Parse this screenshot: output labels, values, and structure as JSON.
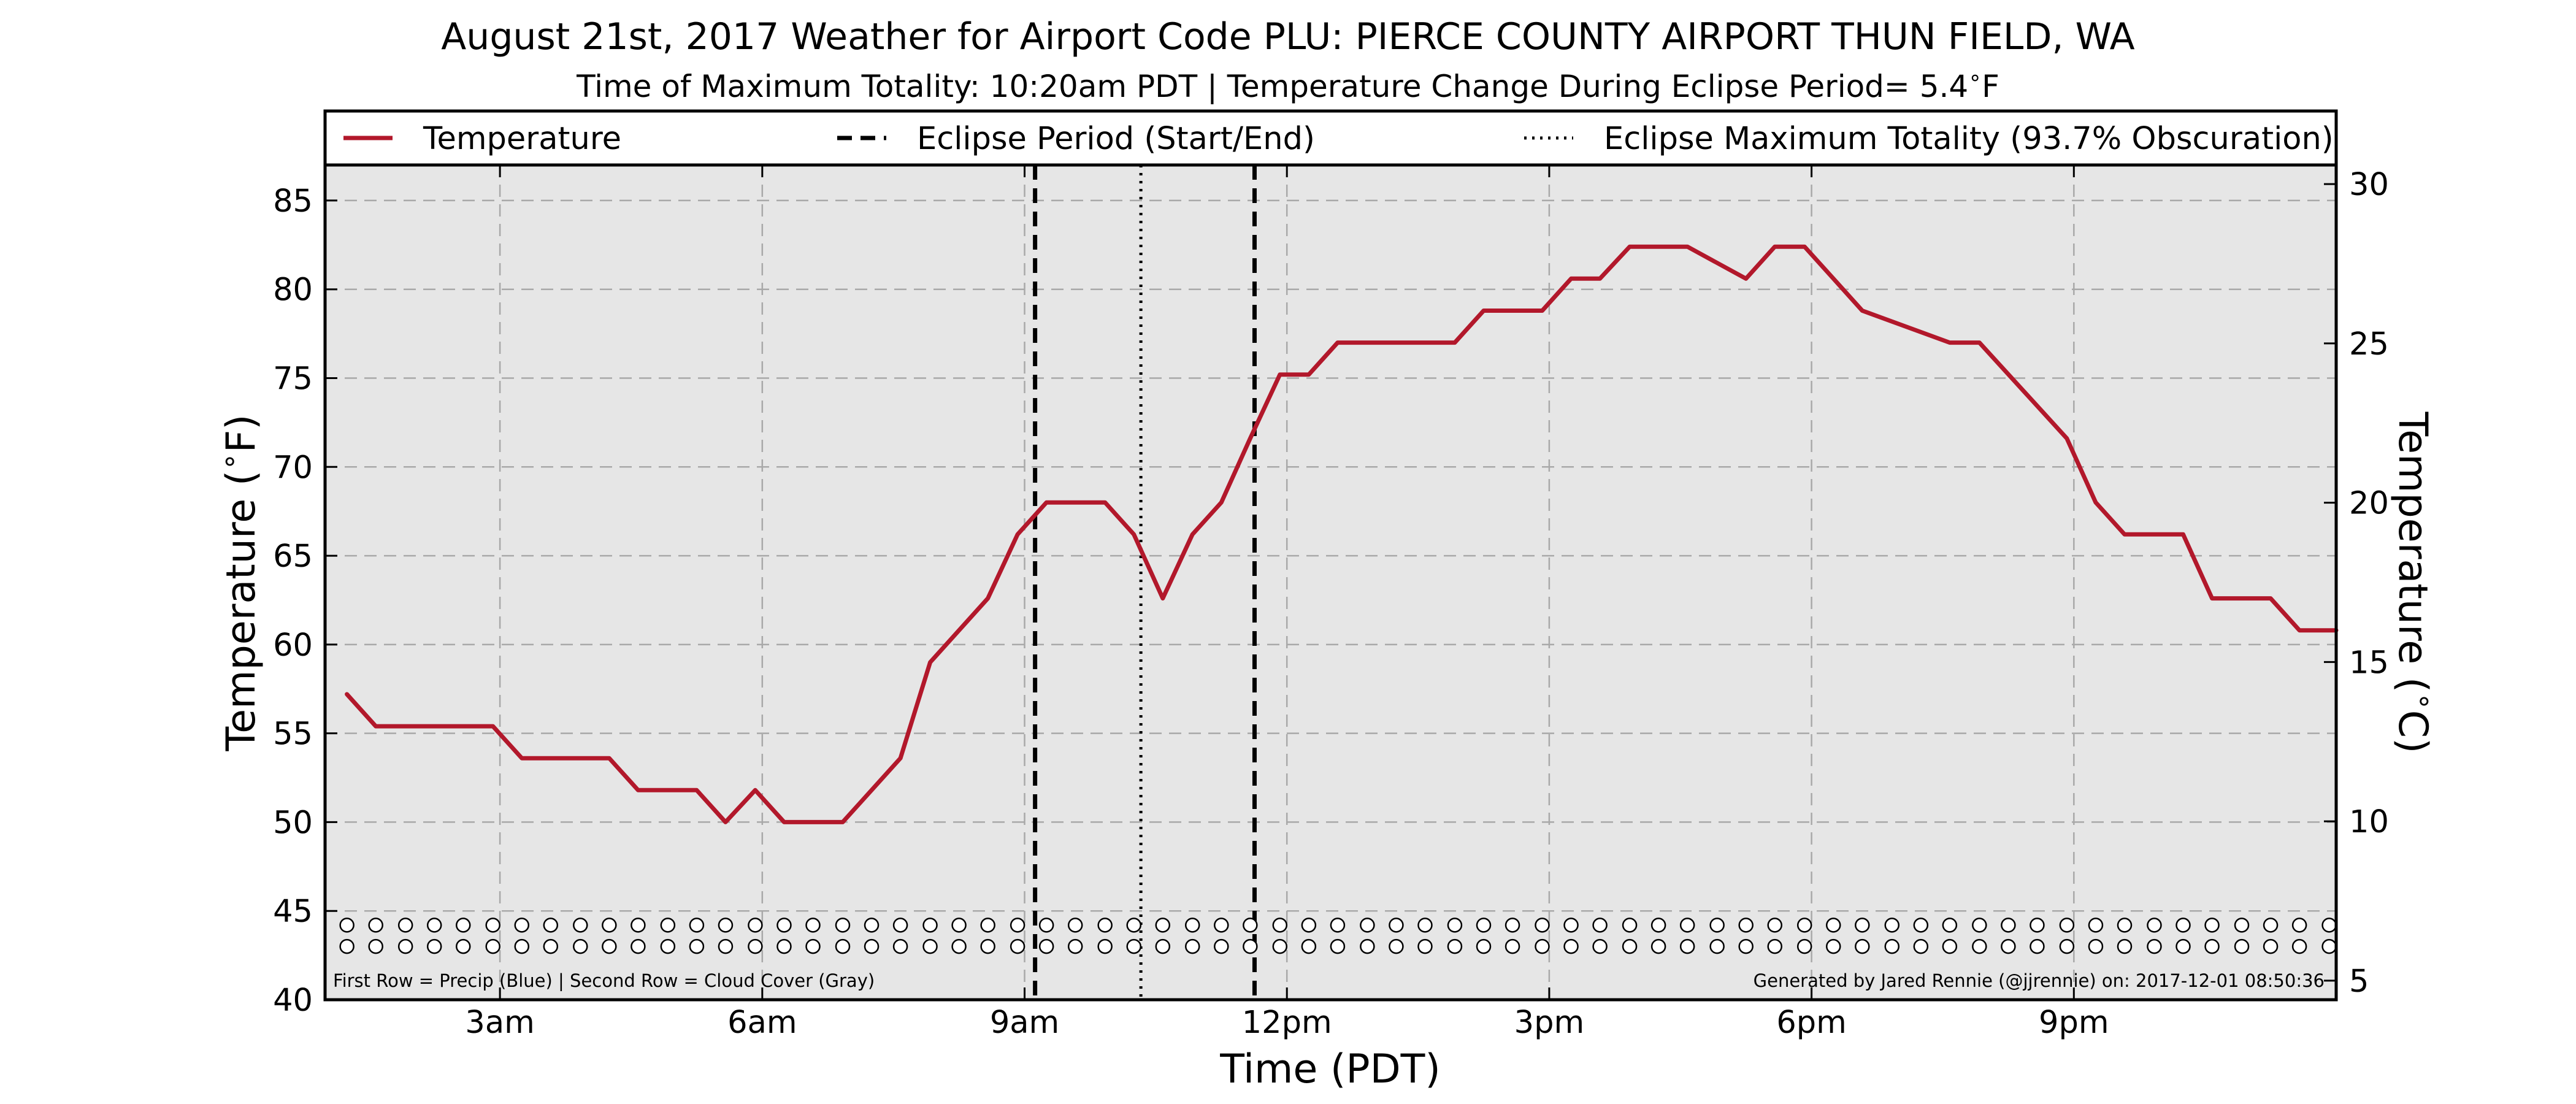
{
  "chart_data": {
    "type": "line",
    "title": "August 21st, 2017 Weather for Airport Code PLU: PIERCE COUNTY AIRPORT THUN FIELD, WA",
    "subtitle": "Time of Maximum Totality: 10:20am PDT | Temperature Change During Eclipse Period= 5.4$^\\circ$F",
    "xlabel": "Time (PDT)",
    "ylabel": "Temperature ($^\\circ$F)",
    "y2label": "Temperature ($^\\circ$C)",
    "xlim": [
      1.0,
      24.0
    ],
    "ylim": [
      40,
      87
    ],
    "y2lim": [
      4.4,
      30.6
    ],
    "x_ticks": [
      3,
      6,
      9,
      12,
      15,
      18,
      21
    ],
    "x_tick_labels": [
      "3am",
      "6am",
      "9am",
      "12pm",
      "3pm",
      "6pm",
      "9pm"
    ],
    "y_ticks": [
      40,
      45,
      50,
      55,
      60,
      65,
      70,
      75,
      80,
      85
    ],
    "y_tick_labels": [
      "40",
      "45",
      "50",
      "55",
      "60",
      "65",
      "70",
      "75",
      "80",
      "85"
    ],
    "y2_ticks": [
      5,
      10,
      15,
      20,
      25,
      30
    ],
    "y2_tick_labels": [
      "5",
      "10",
      "15",
      "20",
      "25",
      "30"
    ],
    "grid": true,
    "legend_position": "top",
    "series": [
      {
        "name": "Temperature",
        "color": "#b2182b",
        "x": [
          1.25,
          1.58,
          2.92,
          3.25,
          4.25,
          4.58,
          5.25,
          5.58,
          5.92,
          6.25,
          6.92,
          7.58,
          7.92,
          8.58,
          8.92,
          9.25,
          9.92,
          10.25,
          10.58,
          10.92,
          11.25,
          11.58,
          11.92,
          12.25,
          12.58,
          13.92,
          14.25,
          14.92,
          15.25,
          15.58,
          15.92,
          16.25,
          16.58,
          17.25,
          17.58,
          17.92,
          18.25,
          18.58,
          19.58,
          19.92,
          20.92,
          21.25,
          21.58,
          22.25,
          22.58,
          23.25,
          23.58,
          24.0
        ],
        "y": [
          57.2,
          55.4,
          55.4,
          53.6,
          53.6,
          51.8,
          51.8,
          50.0,
          51.8,
          50.0,
          50.0,
          53.6,
          59.0,
          62.6,
          66.2,
          68.0,
          68.0,
          66.2,
          62.6,
          66.2,
          68.0,
          71.6,
          75.2,
          75.2,
          77.0,
          77.0,
          78.8,
          78.8,
          80.6,
          80.6,
          82.4,
          82.4,
          82.4,
          80.6,
          82.4,
          82.4,
          80.6,
          78.8,
          77.0,
          77.0,
          71.6,
          68.0,
          66.2,
          66.2,
          62.6,
          62.6,
          60.8,
          60.8
        ]
      }
    ],
    "eclipse_start": 9.12,
    "eclipse_max": 10.33,
    "eclipse_end": 11.63,
    "legend": [
      {
        "label": "Temperature",
        "style": "solid",
        "color": "#b2182b"
      },
      {
        "label": "Eclipse Period (Start/End)",
        "style": "dashed",
        "color": "#000000"
      },
      {
        "label": "Eclipse Maximum Totality (93.7% Obscuration)",
        "style": "dotted",
        "color": "#000000"
      }
    ],
    "marker_rows": {
      "x": [
        1.25,
        1.58,
        1.92,
        2.25,
        2.58,
        2.92,
        3.25,
        3.58,
        3.92,
        4.25,
        4.58,
        4.92,
        5.25,
        5.58,
        5.92,
        6.25,
        6.58,
        6.92,
        7.25,
        7.58,
        7.92,
        8.25,
        8.58,
        8.92,
        9.25,
        9.58,
        9.92,
        10.25,
        10.58,
        10.92,
        11.25,
        11.58,
        11.92,
        12.25,
        12.58,
        12.92,
        13.25,
        13.58,
        13.92,
        14.25,
        14.58,
        14.92,
        15.25,
        15.58,
        15.92,
        16.25,
        16.58,
        16.92,
        17.25,
        17.58,
        17.92,
        18.25,
        18.58,
        18.92,
        19.25,
        19.58,
        19.92,
        20.25,
        20.58,
        20.92,
        21.25,
        21.58,
        21.92,
        22.25,
        22.58,
        22.92,
        23.25,
        23.58,
        23.92
      ],
      "row1_y": 44.2,
      "row2_y": 43.0
    },
    "footnote_left": "First Row = Precip (Blue) | Second Row = Cloud Cover (Gray)",
    "footnote_right": "Generated by Jared Rennie (@jjrennie) on: 2017-12-01 08:50:36"
  }
}
